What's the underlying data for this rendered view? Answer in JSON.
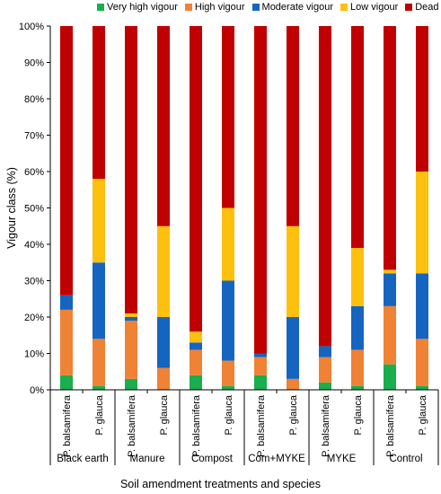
{
  "chart_data": {
    "type": "bar",
    "stacked": true,
    "title": "",
    "ylabel": "Vigour class (%)",
    "xlabel": "Soil amendment treatments and species",
    "ylim": [
      0,
      100
    ],
    "yticks": [
      "0%",
      "10%",
      "20%",
      "30%",
      "40%",
      "50%",
      "60%",
      "70%",
      "80%",
      "90%",
      "100%"
    ],
    "legend_position": "top",
    "groups": [
      "Black earth",
      "Manure",
      "Compost",
      "Com+MYKE",
      "MYKE",
      "Control"
    ],
    "categories": [
      "P. balsamifera",
      "P. glauca",
      "P. balsamifera",
      "P. glauca",
      "P. balsamifera",
      "P. glauca",
      "P. balsamifera",
      "P. glauca",
      "P. balsamifera",
      "P. glauca",
      "P. balsamifera",
      "P. glauca"
    ],
    "series": [
      {
        "name": "Very high vigour",
        "color": "#1aae4e",
        "values": [
          4,
          1,
          3,
          0,
          4,
          1,
          4,
          0,
          2,
          1,
          7,
          1
        ]
      },
      {
        "name": "High vigour",
        "color": "#ef8235",
        "values": [
          18,
          13,
          16,
          6,
          7,
          7,
          5,
          3,
          7,
          10,
          16,
          13
        ]
      },
      {
        "name": "Moderate vigour",
        "color": "#1565c0",
        "values": [
          4,
          21,
          1,
          14,
          2,
          22,
          1,
          17,
          3,
          12,
          9,
          18
        ]
      },
      {
        "name": "Low vigour",
        "color": "#fdc00f",
        "values": [
          0,
          23,
          1,
          25,
          3,
          20,
          0,
          25,
          0,
          16,
          1,
          28
        ]
      },
      {
        "name": "Dead",
        "color": "#c00000",
        "values": [
          74,
          42,
          79,
          55,
          84,
          50,
          90,
          55,
          88,
          61,
          67,
          40
        ]
      }
    ]
  }
}
